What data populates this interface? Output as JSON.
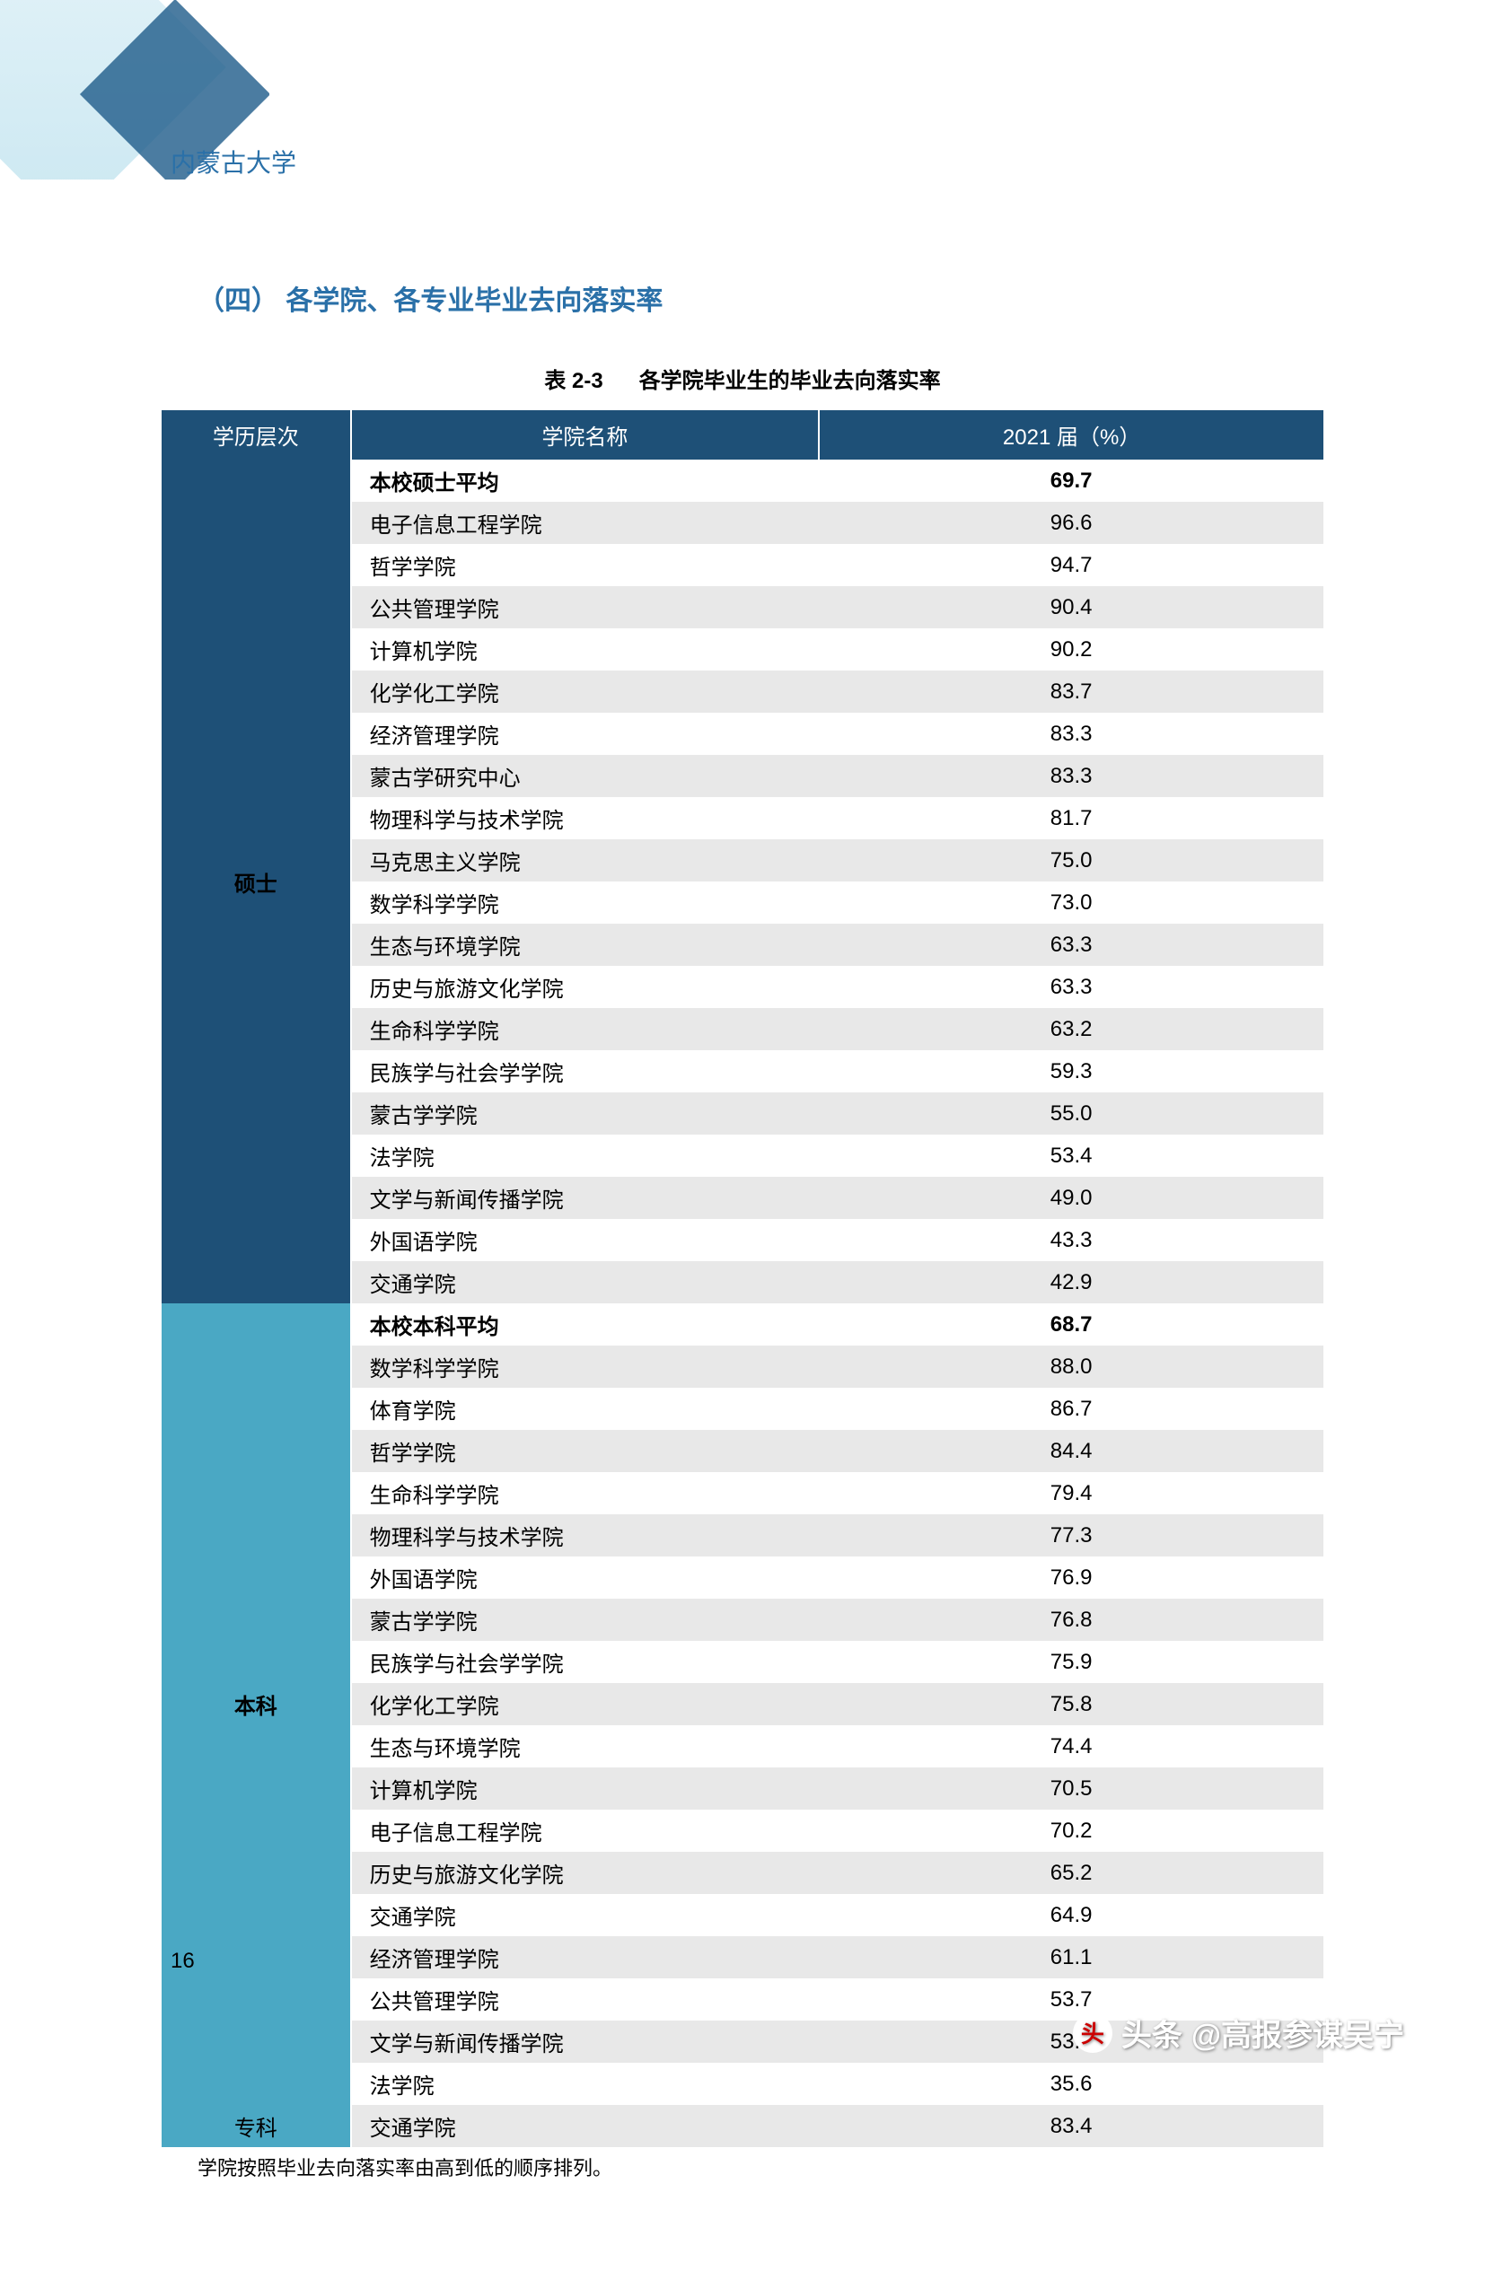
{
  "header": {
    "university_name": "内蒙古大学"
  },
  "section": {
    "title": "（四）  各学院、各专业毕业去向落实率"
  },
  "table": {
    "caption_number": "表 2-3",
    "caption_text": "各学院毕业生的毕业去向落实率",
    "columns": [
      "学历层次",
      "学院名称",
      "2021 届（%）"
    ],
    "levels": [
      {
        "label": "硕士",
        "color": "#1e5077",
        "rows": [
          {
            "college": "本校硕士平均",
            "value": "69.7",
            "bold": true
          },
          {
            "college": "电子信息工程学院",
            "value": "96.6",
            "bold": false
          },
          {
            "college": "哲学学院",
            "value": "94.7",
            "bold": false
          },
          {
            "college": "公共管理学院",
            "value": "90.4",
            "bold": false
          },
          {
            "college": "计算机学院",
            "value": "90.2",
            "bold": false
          },
          {
            "college": "化学化工学院",
            "value": "83.7",
            "bold": false
          },
          {
            "college": "经济管理学院",
            "value": "83.3",
            "bold": false
          },
          {
            "college": "蒙古学研究中心",
            "value": "83.3",
            "bold": false
          },
          {
            "college": "物理科学与技术学院",
            "value": "81.7",
            "bold": false
          },
          {
            "college": "马克思主义学院",
            "value": "75.0",
            "bold": false
          },
          {
            "college": "数学科学学院",
            "value": "73.0",
            "bold": false
          },
          {
            "college": "生态与环境学院",
            "value": "63.3",
            "bold": false
          },
          {
            "college": "历史与旅游文化学院",
            "value": "63.3",
            "bold": false
          },
          {
            "college": "生命科学学院",
            "value": "63.2",
            "bold": false
          },
          {
            "college": "民族学与社会学学院",
            "value": "59.3",
            "bold": false
          },
          {
            "college": "蒙古学学院",
            "value": "55.0",
            "bold": false
          },
          {
            "college": "法学院",
            "value": "53.4",
            "bold": false
          },
          {
            "college": "文学与新闻传播学院",
            "value": "49.0",
            "bold": false
          },
          {
            "college": "外国语学院",
            "value": "43.3",
            "bold": false
          },
          {
            "college": "交通学院",
            "value": "42.9",
            "bold": false
          }
        ]
      },
      {
        "label": "本科",
        "color": "#4aa8c4",
        "rows": [
          {
            "college": "本校本科平均",
            "value": "68.7",
            "bold": true
          },
          {
            "college": "数学科学学院",
            "value": "88.0",
            "bold": false
          },
          {
            "college": "体育学院",
            "value": "86.7",
            "bold": false
          },
          {
            "college": "哲学学院",
            "value": "84.4",
            "bold": false
          },
          {
            "college": "生命科学学院",
            "value": "79.4",
            "bold": false
          },
          {
            "college": "物理科学与技术学院",
            "value": "77.3",
            "bold": false
          },
          {
            "college": "外国语学院",
            "value": "76.9",
            "bold": false
          },
          {
            "college": "蒙古学学院",
            "value": "76.8",
            "bold": false
          },
          {
            "college": "民族学与社会学学院",
            "value": "75.9",
            "bold": false
          },
          {
            "college": "化学化工学院",
            "value": "75.8",
            "bold": false
          },
          {
            "college": "生态与环境学院",
            "value": "74.4",
            "bold": false
          },
          {
            "college": "计算机学院",
            "value": "70.5",
            "bold": false
          },
          {
            "college": "电子信息工程学院",
            "value": "70.2",
            "bold": false
          },
          {
            "college": "历史与旅游文化学院",
            "value": "65.2",
            "bold": false
          },
          {
            "college": "交通学院",
            "value": "64.9",
            "bold": false
          },
          {
            "college": "经济管理学院",
            "value": "61.1",
            "bold": false
          },
          {
            "college": "公共管理学院",
            "value": "53.7",
            "bold": false
          },
          {
            "college": "文学与新闻传播学院",
            "value": "53.3",
            "bold": false
          },
          {
            "college": "法学院",
            "value": "35.6",
            "bold": false
          }
        ]
      },
      {
        "label": "专科",
        "color": "#4aa8c4",
        "rows": [
          {
            "college": "交通学院",
            "value": "83.4",
            "bold": false
          }
        ]
      }
    ],
    "note": "学院按照毕业去向落实率由高到低的顺序排列。"
  },
  "page_number": "16",
  "watermark": {
    "prefix": "头条",
    "text": "@高报参谋吴宁"
  }
}
